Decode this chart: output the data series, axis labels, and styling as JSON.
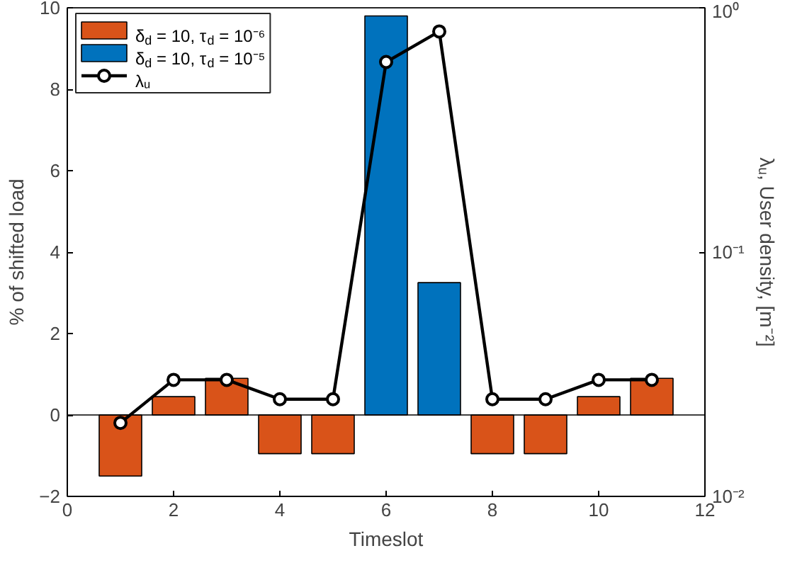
{
  "chart_data": {
    "type": "bar",
    "xlabel": "Timeslot",
    "ylabel": "% of shifted load",
    "y2label": "λᵤ, User density, [m⁻²]",
    "x": [
      1,
      2,
      3,
      4,
      5,
      6,
      7,
      8,
      9,
      10,
      11
    ],
    "series": [
      {
        "name": "δ$_{d}$ = 10, τ$_{d}$ = 10⁻⁶",
        "color": "#d95319",
        "values": [
          -1.5,
          0.45,
          0.9,
          -0.95,
          -0.95,
          null,
          null,
          -0.95,
          -0.95,
          0.45,
          0.9
        ]
      },
      {
        "name": "δ$_{d}$ = 10, τ$_{d}$ = 10⁻⁵",
        "color": "#0072bd",
        "values": [
          null,
          null,
          null,
          null,
          null,
          9.8,
          3.25,
          null,
          null,
          null,
          null
        ]
      },
      {
        "name": "λᵤ",
        "type": "line",
        "axis": "y2",
        "color": "#000000",
        "marker": "circle",
        "values": [
          0.02,
          0.03,
          0.03,
          0.025,
          0.025,
          0.6,
          0.8,
          0.025,
          0.025,
          0.03,
          0.03
        ]
      }
    ],
    "xlim": [
      0,
      12
    ],
    "xticks": [
      0,
      2,
      4,
      6,
      8,
      10,
      12
    ],
    "ylim": [
      -2,
      10
    ],
    "yticks": [
      -2,
      0,
      2,
      4,
      6,
      8,
      10
    ],
    "y2lim": [
      0.01,
      1
    ],
    "y2ticks": [
      {
        "value": 0.01,
        "label": "10⁻²"
      },
      {
        "value": 0.1,
        "label": "10⁻¹"
      },
      {
        "value": 1,
        "label": "10⁰"
      }
    ],
    "ref_lines": [
      {
        "axis": "y",
        "value": 0,
        "color": "#000000"
      }
    ],
    "log": "y2",
    "legend": "top left",
    "grid": false
  }
}
